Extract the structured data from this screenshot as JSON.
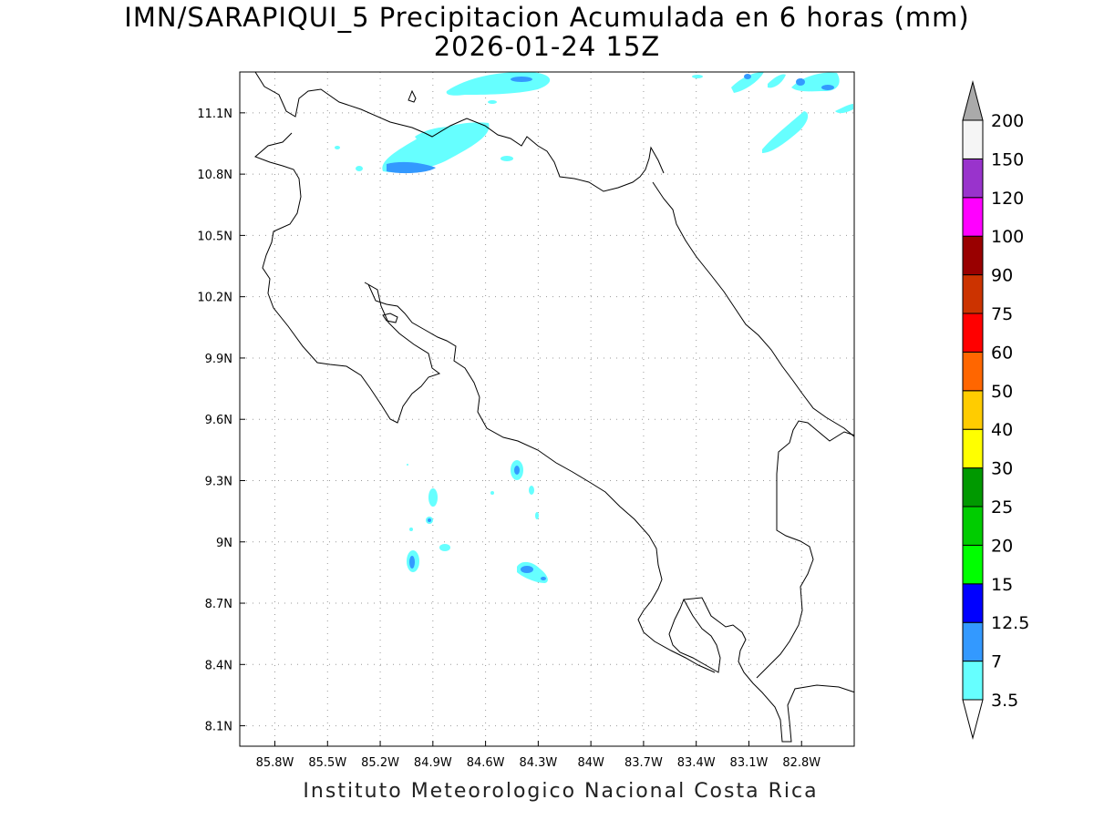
{
  "title": {
    "line1": "IMN/SARAPIQUI_5 Precipitacion Acumulada en 6 horas (mm)",
    "line2": "2026-01-24 15Z"
  },
  "credit": "Instituto Meteorologico Nacional Costa Rica",
  "map": {
    "lon_range": [
      -86.0,
      -82.5
    ],
    "lat_range": [
      8.0,
      11.3
    ],
    "lon_ticks": [
      -85.8,
      -85.5,
      -85.2,
      -84.9,
      -84.6,
      -84.3,
      -84.0,
      -83.7,
      -83.4,
      -83.1,
      -82.8
    ],
    "lon_tick_labels": [
      "85.8W",
      "85.5W",
      "85.2W",
      "84.9W",
      "84.6W",
      "84.3W",
      "84W",
      "83.7W",
      "83.4W",
      "83.1W",
      "82.8W"
    ],
    "lat_ticks": [
      8.1,
      8.4,
      8.7,
      9.0,
      9.3,
      9.6,
      9.9,
      10.2,
      10.5,
      10.8,
      11.1
    ],
    "lat_tick_labels": [
      "8.1N",
      "8.4N",
      "8.7N",
      "9N",
      "9.3N",
      "9.6N",
      "9.9N",
      "10.2N",
      "10.5N",
      "10.8N",
      "11.1N"
    ],
    "grid": true,
    "coastline_color": "#000000"
  },
  "colorbar": {
    "levels": [
      "3.5",
      "7",
      "12.5",
      "15",
      "20",
      "25",
      "30",
      "40",
      "50",
      "60",
      "75",
      "90",
      "100",
      "120",
      "150",
      "200"
    ],
    "colors": [
      "#66ffff",
      "#3399ff",
      "#0000ff",
      "#00ff00",
      "#00cc00",
      "#009900",
      "#ffff00",
      "#ffcc00",
      "#ff6600",
      "#ff0000",
      "#cc3300",
      "#990000",
      "#ff00ff",
      "#9933cc",
      "#f5f5f5"
    ],
    "under_color": "#ffffff",
    "over_color": "#aaaaaa"
  },
  "precip_cells": [
    {
      "lon": -85.0,
      "lat": 10.84,
      "level": "3.5"
    },
    {
      "lon": -84.75,
      "lat": 10.97,
      "level": "3.5"
    },
    {
      "lon": -85.0,
      "lat": 10.84,
      "level": "7"
    },
    {
      "lon": -84.45,
      "lat": 11.25,
      "level": "3.5"
    },
    {
      "lon": -84.35,
      "lat": 11.25,
      "level": "7"
    },
    {
      "lon": -84.4,
      "lat": 9.35,
      "level": "3.5"
    },
    {
      "lon": -84.4,
      "lat": 9.35,
      "level": "7"
    },
    {
      "lon": -84.35,
      "lat": 8.85,
      "level": "3.5"
    },
    {
      "lon": -84.35,
      "lat": 8.85,
      "level": "7"
    },
    {
      "lon": -85.05,
      "lat": 8.9,
      "level": "3.5"
    },
    {
      "lon": -85.05,
      "lat": 8.9,
      "level": "7"
    },
    {
      "lon": -84.92,
      "lat": 9.22,
      "level": "3.5"
    },
    {
      "lon": -84.94,
      "lat": 9.11,
      "level": "3.5"
    },
    {
      "lon": -82.85,
      "lat": 11.25,
      "level": "3.5"
    },
    {
      "lon": -82.85,
      "lat": 11.25,
      "level": "7"
    },
    {
      "lon": -83.15,
      "lat": 10.98,
      "level": "3.5"
    },
    {
      "lon": -83.15,
      "lat": 11.25,
      "level": "3.5"
    }
  ]
}
